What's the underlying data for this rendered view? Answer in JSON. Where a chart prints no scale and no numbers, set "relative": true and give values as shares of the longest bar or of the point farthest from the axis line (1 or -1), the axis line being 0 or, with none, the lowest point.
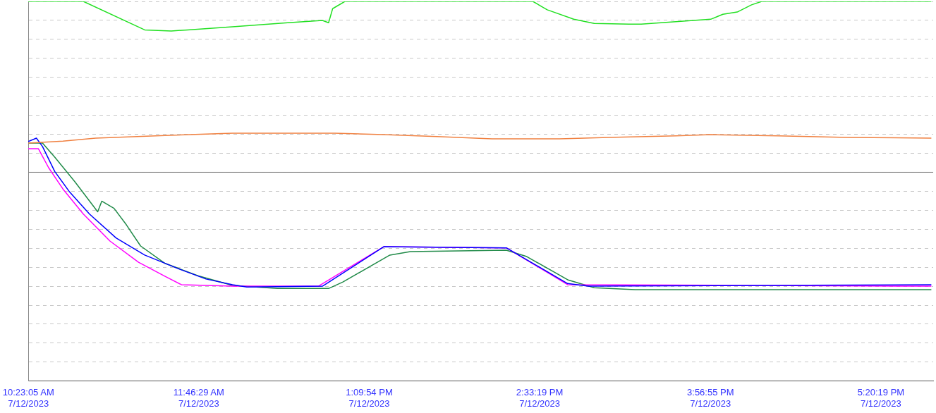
{
  "chart_data": {
    "type": "line",
    "relative": true,
    "xlim": [
      "2023-07-12T10:23",
      "2023-07-12T17:45:54"
    ],
    "xticks": [
      {
        "value": "2023-07-12T10:23:05",
        "label": "10:23:05 AM\n7/12/2023"
      },
      {
        "value": "2023-07-12T11:46:29",
        "label": "11:46:29 AM\n7/12/2023"
      },
      {
        "value": "2023-07-12T13:09:54",
        "label": "1:09:54 PM\n7/12/2023"
      },
      {
        "value": "2023-07-12T14:33:19",
        "label": "2:33:19 PM\n7/12/2023"
      },
      {
        "value": "2023-07-12T15:56:55",
        "label": "3:56:55 PM\n7/12/2023"
      },
      {
        "value": "2023-07-12T17:20:19",
        "label": "5:20:19 PM\n7/12/2023"
      }
    ],
    "tick_labels": "x",
    "grid": "y",
    "legend": false,
    "marker": "none",
    "line_style": "solid",
    "ref_lines": [
      {
        "axis": "y",
        "value": 0.55,
        "color": "#808080"
      }
    ],
    "series": [
      {
        "color": "#22e022",
        "x": [
          "2023-07-12T10:23",
          "2023-07-12T10:50",
          "2023-07-12T11:20",
          "2023-07-12T11:33",
          "2023-07-12T11:41",
          "2023-07-12T12:03",
          "2023-07-12T12:30",
          "2023-07-12T12:47",
          "2023-07-12T12:50",
          "2023-07-12T12:52",
          "2023-07-12T12:58",
          "2023-07-12T13:05",
          "2023-07-12T14:30",
          "2023-07-12T14:37",
          "2023-07-12T14:50",
          "2023-07-12T15:00",
          "2023-07-12T15:17",
          "2023-07-12T15:23",
          "2023-07-12T15:57",
          "2023-07-12T16:03",
          "2023-07-12T16:10",
          "2023-07-12T16:17",
          "2023-07-12T16:22",
          "2023-07-12T17:45"
        ],
        "values": [
          1,
          1,
          0.925,
          0.922,
          0.925,
          0.933,
          0.944,
          0.95,
          0.944,
          0.981,
          1,
          1,
          1,
          0.978,
          0.953,
          0.942,
          0.94,
          0.94,
          0.953,
          0.966,
          0.972,
          0.991,
          1,
          1
        ]
      },
      {
        "color": "#f08040",
        "x": [
          "2023-07-12T10:23",
          "2023-07-12T10:40",
          "2023-07-12T10:56",
          "2023-07-12T11:30",
          "2023-07-12T12:03",
          "2023-07-12T12:53",
          "2023-07-12T13:17",
          "2023-07-12T13:43",
          "2023-07-12T14:10",
          "2023-07-12T14:43",
          "2023-07-12T15:07",
          "2023-07-12T15:40",
          "2023-07-12T15:57",
          "2023-07-12T16:30",
          "2023-07-12T17:04",
          "2023-07-12T17:45"
        ],
        "values": [
          0.627,
          0.632,
          0.64,
          0.647,
          0.653,
          0.653,
          0.649,
          0.644,
          0.638,
          0.638,
          0.642,
          0.646,
          0.649,
          0.646,
          0.642,
          0.64
        ]
      },
      {
        "color": "#0000ff",
        "x": [
          "2023-07-12T10:23",
          "2023-07-12T10:27",
          "2023-07-12T10:30",
          "2023-07-12T10:36",
          "2023-07-12T10:43",
          "2023-07-12T10:53",
          "2023-07-12T11:06",
          "2023-07-12T11:20",
          "2023-07-12T11:37",
          "2023-07-12T11:50",
          "2023-07-12T12:03",
          "2023-07-12T12:10",
          "2023-07-12T12:47",
          "2023-07-12T13:17",
          "2023-07-12T14:17",
          "2023-07-12T14:23",
          "2023-07-12T14:47",
          "2023-07-12T14:57",
          "2023-07-12T17:45"
        ],
        "values": [
          0.631,
          0.64,
          0.618,
          0.552,
          0.5,
          0.44,
          0.377,
          0.332,
          0.295,
          0.269,
          0.254,
          0.248,
          0.25,
          0.354,
          0.351,
          0.332,
          0.257,
          0.25,
          0.254
        ]
      },
      {
        "color": "#ff00ff",
        "x": [
          "2023-07-12T10:23",
          "2023-07-12T10:28",
          "2023-07-12T10:33",
          "2023-07-12T10:40",
          "2023-07-12T10:50",
          "2023-07-12T11:03",
          "2023-07-12T11:17",
          "2023-07-12T11:30",
          "2023-07-12T11:38",
          "2023-07-12T12:03",
          "2023-07-12T12:45",
          "2023-07-12T13:17",
          "2023-07-12T14:17",
          "2023-07-12T14:47",
          "2023-07-12T17:45"
        ],
        "values": [
          0.612,
          0.612,
          0.562,
          0.506,
          0.44,
          0.369,
          0.313,
          0.276,
          0.254,
          0.25,
          0.25,
          0.354,
          0.351,
          0.254,
          0.25
        ]
      },
      {
        "color": "#208a48",
        "x": [
          "2023-07-12T10:23",
          "2023-07-12T10:30",
          "2023-07-12T10:36",
          "2023-07-12T10:46",
          "2023-07-12T10:57",
          "2023-07-12T10:59",
          "2023-07-12T11:05",
          "2023-07-12T11:11",
          "2023-07-12T11:18",
          "2023-07-12T11:30",
          "2023-07-12T11:47",
          "2023-07-12T12:03",
          "2023-07-12T12:25",
          "2023-07-12T12:50",
          "2023-07-12T12:57",
          "2023-07-12T13:20",
          "2023-07-12T13:30",
          "2023-07-12T14:17",
          "2023-07-12T14:27",
          "2023-07-12T14:47",
          "2023-07-12T15:00",
          "2023-07-12T15:20",
          "2023-07-12T17:45"
        ],
        "values": [
          0.627,
          0.627,
          0.59,
          0.524,
          0.446,
          0.474,
          0.455,
          0.412,
          0.356,
          0.31,
          0.276,
          0.252,
          0.244,
          0.244,
          0.261,
          0.332,
          0.341,
          0.345,
          0.328,
          0.267,
          0.246,
          0.241,
          0.241
        ]
      }
    ]
  }
}
